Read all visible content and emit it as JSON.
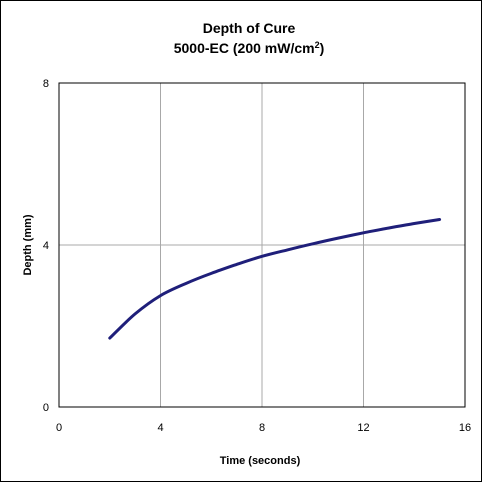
{
  "chart_data": {
    "type": "line",
    "title": "Depth of Cure",
    "subtitle_prefix": "5000-EC (200 mW/cm",
    "subtitle_sup": "2",
    "subtitle_suffix": ")",
    "xlabel": "Time (seconds)",
    "ylabel": "Depth (mm)",
    "xlim": [
      0,
      16
    ],
    "ylim": [
      0,
      8
    ],
    "x_ticks": [
      0,
      4,
      8,
      12,
      16
    ],
    "y_ticks": [
      0,
      4,
      8
    ],
    "grid": true,
    "line_color": "#1f1f7a",
    "grid_color": "#a8a8a8",
    "series": [
      {
        "x": [
          2,
          3,
          4,
          5,
          6,
          7,
          8,
          9,
          10,
          11,
          12,
          13,
          14,
          15
        ],
        "values": [
          1.7,
          2.3,
          2.75,
          3.05,
          3.3,
          3.52,
          3.72,
          3.88,
          4.03,
          4.17,
          4.3,
          4.42,
          4.53,
          4.63
        ]
      }
    ]
  }
}
